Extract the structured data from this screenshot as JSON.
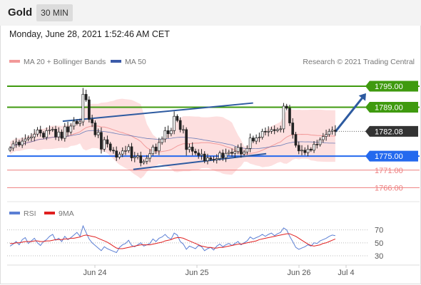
{
  "header": {
    "instrument": "Gold",
    "timeframe": "30 MIN"
  },
  "datetime": "Monday, June 28, 2021 1:52:46 AM CET",
  "legend": {
    "bollinger": "MA 20 + Bollinger Bands",
    "ma50": "MA 50",
    "credit": "Research © 2021 Trading Central",
    "rsi": "RSI",
    "rsi_ma": "9MA"
  },
  "colors": {
    "resistance": "#3f9a0f",
    "support": "#2469ee",
    "minor_support": "#ee7f7f",
    "current": "#333333",
    "candle": "#222222",
    "band": "#fdd9d9",
    "ma20": "#f29999",
    "ma50": "#3b5ba9",
    "rsi": "#5b7fd4",
    "rsi_ma": "#e01f1f",
    "channel": "#2d5aa0"
  },
  "chart_data": [
    {
      "type": "candlestick",
      "x_labels": [
        "Jun 24",
        "Jun 25",
        "Jun 26",
        "Jul 4"
      ],
      "ylim": [
        1762.6,
        1800.3
      ],
      "price_levels": [
        {
          "label": "1795.00",
          "value": 1795.0,
          "kind": "resistance"
        },
        {
          "label": "1789.00",
          "value": 1789.0,
          "kind": "resistance"
        },
        {
          "label": "1782.08",
          "value": 1782.08,
          "kind": "current"
        },
        {
          "label": "1775.00",
          "value": 1775.0,
          "kind": "support"
        },
        {
          "label": "1771.00",
          "value": 1771.0,
          "kind": "minor-support"
        },
        {
          "label": "1766.00",
          "value": 1766.0,
          "kind": "minor-support"
        }
      ],
      "upper_channel": [
        [
          0.165,
          1785.0
        ],
        [
          0.745,
          1790.2
        ]
      ],
      "lower_channel": [
        [
          0.38,
          1771.2
        ],
        [
          0.785,
          1775.7
        ]
      ],
      "projection": {
        "from": 1782.0,
        "to": 1793.0
      },
      "closes": [
        1777.3,
        1778.5,
        1779.0,
        1778.2,
        1779.3,
        1779.9,
        1780.2,
        1780.5,
        1781.3,
        1782.5,
        1781.6,
        1780.4,
        1782.3,
        1782.5,
        1782.7,
        1780.5,
        1781.9,
        1780.1,
        1783.4,
        1781.9,
        1783.6,
        1785.0,
        1784.3,
        1784.8,
        1792.7,
        1791.1,
        1785.5,
        1784.5,
        1781.1,
        1781.8,
        1777.0,
        1779.7,
        1778.5,
        1776.7,
        1776.5,
        1774.7,
        1775.6,
        1776.5,
        1776.6,
        1777.7,
        1774.5,
        1774.8,
        1775.1,
        1773.1,
        1773.5,
        1774.4,
        1775.7,
        1777.6,
        1776.5,
        1778.9,
        1779.9,
        1782.3,
        1781.4,
        1782.3,
        1786.4,
        1785.2,
        1782.6,
        1782.6,
        1776.9,
        1777.6,
        1776.4,
        1775.9,
        1775.2,
        1775.6,
        1773.7,
        1774.5,
        1774.1,
        1774.0,
        1774.3,
        1775.9,
        1774.5,
        1775.8,
        1776.1,
        1775.8,
        1776.3,
        1777.5,
        1775.6,
        1776.2,
        1777.2,
        1780.2,
        1779.3,
        1780.2,
        1780.4,
        1782.1,
        1781.9,
        1782.1,
        1782.6,
        1782.3,
        1782.6,
        1782.8,
        1789.3,
        1788.7,
        1784.5,
        1781.2,
        1778.1,
        1776.5,
        1776.7,
        1776.0,
        1777.0,
        1776.7,
        1778.4,
        1778.3,
        1779.7,
        1780.6,
        1781.2,
        1782.1,
        1782.4,
        1782.1
      ]
    },
    {
      "type": "line",
      "title": "RSI",
      "y_ticks": [
        70,
        50,
        30
      ],
      "ylim": [
        18,
        86
      ],
      "series": [
        {
          "name": "RSI",
          "values": [
            45,
            48,
            52,
            47,
            55,
            58,
            49,
            53,
            57,
            50,
            46,
            52,
            55,
            60,
            63,
            54,
            57,
            52,
            60,
            55,
            58,
            62,
            66,
            60,
            76,
            66,
            56,
            50,
            46,
            42,
            38,
            44,
            41,
            39,
            37,
            35,
            43,
            47,
            49,
            54,
            46,
            44,
            47,
            50,
            45,
            47,
            49,
            56,
            52,
            57,
            59,
            63,
            58,
            56,
            65,
            62,
            52,
            48,
            40,
            45,
            43,
            41,
            46,
            44,
            38,
            41,
            43,
            39,
            45,
            48,
            44,
            47,
            49,
            46,
            49,
            52,
            47,
            50,
            53,
            59,
            56,
            58,
            60,
            63,
            60,
            63,
            65,
            61,
            64,
            66,
            73,
            70,
            60,
            52,
            43,
            40,
            42,
            44,
            47,
            45,
            50,
            49,
            53,
            55,
            57,
            60,
            62,
            61
          ]
        },
        {
          "name": "9MA",
          "values": [
            49,
            49,
            50,
            50,
            51,
            52,
            52,
            52,
            53,
            53,
            52,
            52,
            53,
            53,
            54,
            55,
            55,
            55,
            56,
            56,
            57,
            57,
            58,
            59,
            61,
            62,
            61,
            60,
            59,
            57,
            55,
            53,
            51,
            48,
            45,
            42,
            41,
            41,
            42,
            43,
            44,
            45,
            46,
            47,
            47,
            47,
            47,
            48,
            49,
            50,
            51,
            53,
            54,
            55,
            57,
            58,
            58,
            57,
            55,
            53,
            51,
            49,
            47,
            45,
            44,
            43,
            43,
            42,
            42,
            43,
            43,
            44,
            45,
            46,
            47,
            48,
            48,
            49,
            50,
            51,
            52,
            53,
            55,
            56,
            57,
            58,
            59,
            60,
            61,
            62,
            63,
            64,
            64,
            62,
            60,
            57,
            54,
            51,
            48,
            46,
            45,
            46,
            47,
            49,
            50,
            52,
            54,
            56
          ]
        }
      ]
    }
  ]
}
